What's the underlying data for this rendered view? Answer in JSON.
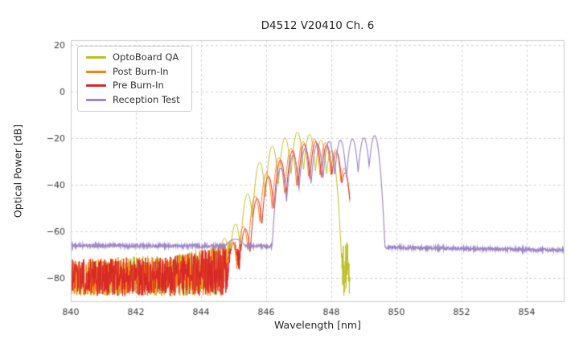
{
  "chart_data": {
    "type": "line",
    "title": "D4512 V20410 Ch. 6",
    "xlabel": "Wavelength [nm]",
    "ylabel": "Optical Power [dB]",
    "xlim": [
      840,
      855.16
    ],
    "ylim": [
      -90.5,
      22
    ],
    "xticks": [
      840,
      842,
      844,
      846,
      848,
      850,
      852,
      854
    ],
    "yticks": [
      20,
      0,
      -20,
      -40,
      -60,
      -80
    ],
    "grid": true,
    "grid_color": "#cfcfcf",
    "spine_color": "#cccccc",
    "legend_position": "upper left",
    "series": [
      {
        "name": "OptoBoard QA",
        "color": "#bcbd22",
        "kind": "comb_over_noise",
        "x_range": [
          840,
          848.57
        ],
        "noise_bottom": -88,
        "noise_top_profile": [
          [
            840,
            -71.5
          ],
          [
            843,
            -70.5
          ],
          [
            844.2,
            -67
          ],
          [
            845,
            -63.5
          ],
          [
            848.35,
            -63.5
          ],
          [
            848.57,
            -66
          ]
        ],
        "peak_width": 0.046,
        "peaks": [
          [
            844.72,
            -63
          ],
          [
            845.06,
            -57
          ],
          [
            845.43,
            -44
          ],
          [
            845.8,
            -30.5
          ],
          [
            846.19,
            -23.5
          ],
          [
            846.58,
            -20
          ],
          [
            846.96,
            -17.5
          ],
          [
            847.33,
            -18.5
          ],
          [
            847.68,
            -21
          ],
          [
            848.0,
            -25.5
          ]
        ]
      },
      {
        "name": "Post Burn-In",
        "color": "#ff7f0e",
        "kind": "comb_over_noise",
        "x_range": [
          840,
          848.57
        ],
        "noise_bottom": -88,
        "noise_top_profile": [
          [
            840,
            -72
          ],
          [
            843,
            -71
          ],
          [
            844.2,
            -67.5
          ],
          [
            845,
            -64
          ],
          [
            848.35,
            -64
          ],
          [
            848.57,
            -66.5
          ]
        ],
        "peak_width": 0.044,
        "peaks": [
          [
            844.95,
            -64
          ],
          [
            845.3,
            -58
          ],
          [
            845.66,
            -45
          ],
          [
            846.01,
            -35
          ],
          [
            846.39,
            -28.5
          ],
          [
            846.76,
            -24.5
          ],
          [
            847.13,
            -21.5
          ],
          [
            847.48,
            -20.5
          ],
          [
            847.82,
            -22
          ],
          [
            848.13,
            -25
          ],
          [
            848.4,
            -33
          ]
        ]
      },
      {
        "name": "Pre Burn-In",
        "color": "#d62728",
        "kind": "comb_over_noise",
        "x_range": [
          840,
          848.57
        ],
        "noise_bottom": -88,
        "noise_top_profile": [
          [
            840,
            -72
          ],
          [
            843,
            -71
          ],
          [
            844.2,
            -67.5
          ],
          [
            845,
            -64
          ],
          [
            848.35,
            -64
          ],
          [
            848.57,
            -66.5
          ]
        ],
        "peak_width": 0.044,
        "peaks": [
          [
            845.0,
            -65
          ],
          [
            845.36,
            -59
          ],
          [
            845.72,
            -46
          ],
          [
            846.07,
            -36.5
          ],
          [
            846.44,
            -29.5
          ],
          [
            846.81,
            -25.5
          ],
          [
            847.17,
            -22.5
          ],
          [
            847.52,
            -21.5
          ],
          [
            847.86,
            -23
          ],
          [
            848.16,
            -26
          ],
          [
            848.42,
            -35
          ]
        ]
      },
      {
        "name": "Reception Test",
        "color": "#9e86c8",
        "kind": "comb_over_floor",
        "x_range": [
          840,
          855.16
        ],
        "floor_profile": [
          [
            840,
            -66.3
          ],
          [
            846,
            -66.5
          ],
          [
            849.6,
            -67
          ],
          [
            855.16,
            -68.2
          ]
        ],
        "floor_jitter": 0.7,
        "peak_width": 0.046,
        "peaks": [
          [
            845.05,
            -63.5,
            0.18
          ],
          [
            846.45,
            -33
          ],
          [
            846.83,
            -27.5
          ],
          [
            847.2,
            -24.5
          ],
          [
            847.57,
            -22.5
          ],
          [
            847.93,
            -21.5
          ],
          [
            848.28,
            -21
          ],
          [
            848.65,
            -20.5
          ],
          [
            849.0,
            -20
          ],
          [
            849.33,
            -19
          ]
        ]
      }
    ]
  }
}
